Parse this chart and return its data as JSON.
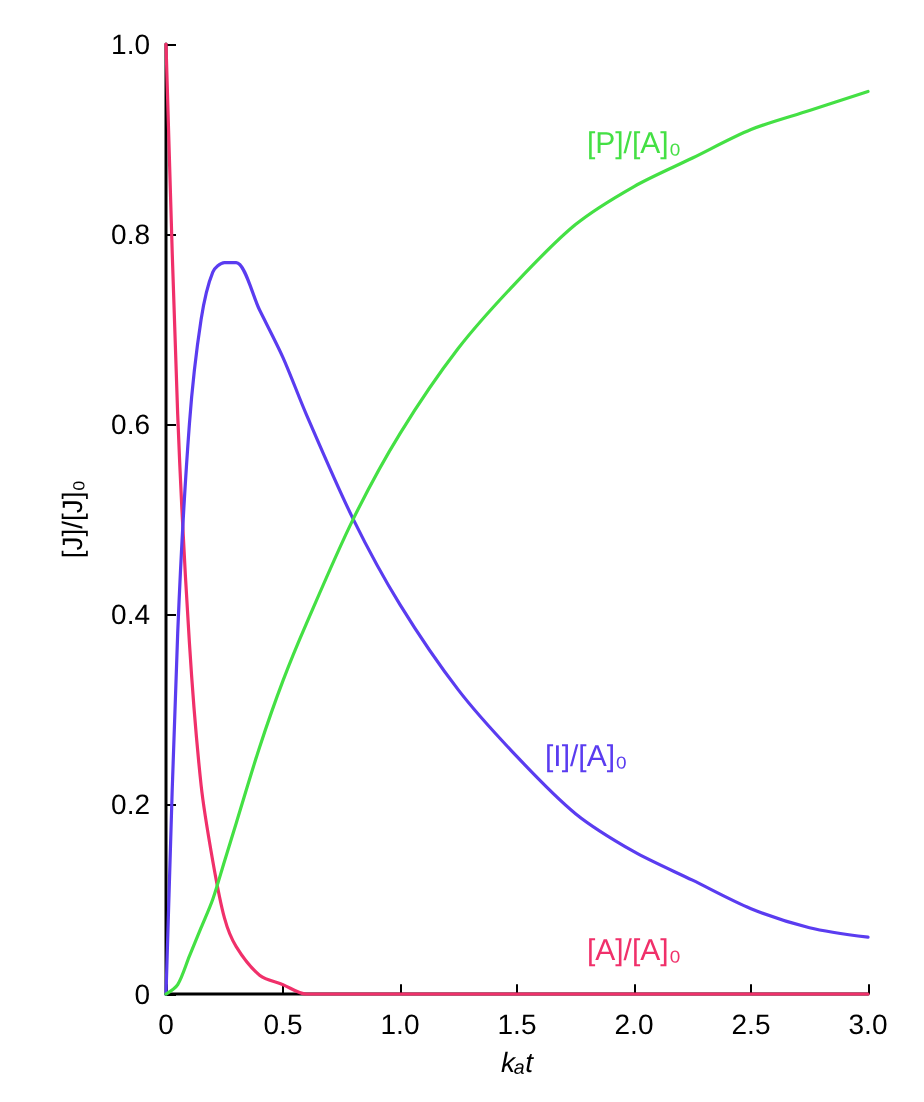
{
  "chart_data": {
    "type": "line",
    "xlabel": "kₐt",
    "ylabel": "[J]/[J]₀",
    "x": [
      0,
      0.05,
      0.1,
      0.15,
      0.2,
      0.25,
      0.3,
      0.4,
      0.5,
      0.6,
      0.8,
      1.0,
      1.25,
      1.5,
      1.75,
      2.0,
      2.25,
      2.5,
      2.75,
      3.0
    ],
    "series": [
      {
        "name": "[A]/[A]₀",
        "color": "#f0306a",
        "values": [
          1,
          0.61,
          0.37,
          0.22,
          0.14,
          0.08,
          0.05,
          0.02,
          0.01,
          0,
          0,
          0,
          0,
          0,
          0,
          0,
          0,
          0,
          0,
          0
        ]
      },
      {
        "name": "[I]/[A]₀",
        "color": "#5a3cf0",
        "values": [
          0,
          0.38,
          0.6,
          0.71,
          0.76,
          0.77,
          0.77,
          0.72,
          0.67,
          0.61,
          0.5,
          0.41,
          0.32,
          0.25,
          0.19,
          0.15,
          0.12,
          0.09,
          0.07,
          0.06
        ]
      },
      {
        "name": "[P]/[A]₀",
        "color": "#44e044",
        "values": [
          0,
          0.01,
          0.04,
          0.07,
          0.1,
          0.14,
          0.18,
          0.26,
          0.33,
          0.39,
          0.5,
          0.59,
          0.68,
          0.75,
          0.81,
          0.85,
          0.88,
          0.91,
          0.93,
          0.95
        ]
      }
    ],
    "xlim": [
      0,
      3
    ],
    "xticks": [
      0,
      0.5,
      {
        "value": 1,
        "label": "1.0"
      },
      1.5,
      {
        "value": 2,
        "label": "2.0"
      },
      2.5,
      {
        "value": 3,
        "label": "3.0"
      }
    ],
    "ylim": [
      0,
      1
    ],
    "yticks": [
      0,
      0.2,
      0.4,
      0.6,
      0.8,
      {
        "value": 1,
        "label": "1.0"
      }
    ],
    "grid": false,
    "legend": false,
    "marker": "none",
    "line_style": "solid"
  }
}
